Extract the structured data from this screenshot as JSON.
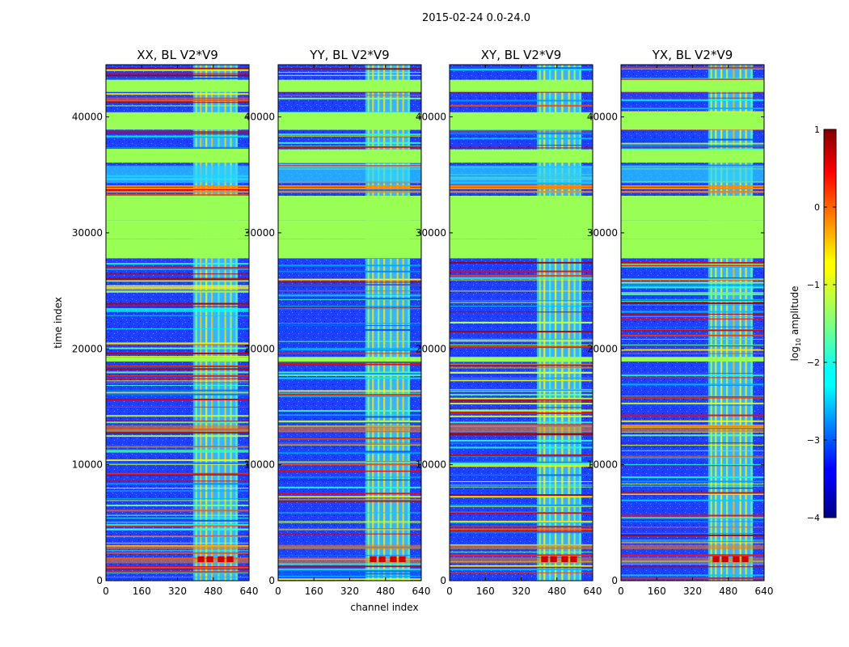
{
  "figure": {
    "suptitle": "2015-02-24 0.0-24.0"
  },
  "chart_data": [
    {
      "type": "heatmap",
      "title": "XX, BL V2*V9",
      "xlabel": "",
      "ylabel": "time index",
      "xlim": [
        0,
        640
      ],
      "ylim": [
        0,
        44500
      ],
      "xticks": [
        0,
        160,
        320,
        480,
        640
      ],
      "yticks": [
        0,
        10000,
        20000,
        30000,
        40000
      ],
      "grid": false
    },
    {
      "type": "heatmap",
      "title": "YY, BL V2*V9",
      "xlabel": "channel index",
      "ylabel": "",
      "xlim": [
        0,
        640
      ],
      "ylim": [
        0,
        44500
      ],
      "xticks": [
        0,
        160,
        320,
        480,
        640
      ],
      "yticks": [
        0,
        10000,
        20000,
        30000,
        40000
      ],
      "grid": false
    },
    {
      "type": "heatmap",
      "title": "XY, BL V2*V9",
      "xlabel": "",
      "ylabel": "",
      "xlim": [
        0,
        640
      ],
      "ylim": [
        0,
        44500
      ],
      "xticks": [
        0,
        160,
        320,
        480,
        640
      ],
      "yticks": [
        0,
        10000,
        20000,
        30000,
        40000
      ],
      "grid": false
    },
    {
      "type": "heatmap",
      "title": "YX, BL V2*V9",
      "xlabel": "",
      "ylabel": "",
      "xlim": [
        0,
        640
      ],
      "ylim": [
        0,
        44500
      ],
      "xticks": [
        0,
        160,
        320,
        480,
        640
      ],
      "yticks": [
        0,
        10000,
        20000,
        30000,
        40000
      ],
      "grid": false
    }
  ],
  "colorbar": {
    "label": "log10 amplitude",
    "label_prefix": "log",
    "label_sub": "10",
    "label_suffix": " amplitude",
    "vmin": -4,
    "vmax": 1,
    "ticks": [
      1,
      0,
      -1,
      -2,
      -3,
      -4
    ],
    "tick_labels": [
      "1",
      "0",
      "−1",
      "−2",
      "−3",
      "−4"
    ],
    "colormap": "jet"
  },
  "structure": {
    "flag_color": "#99ff55",
    "flagged_time_ranges": [
      [
        42150,
        43200
      ],
      [
        38900,
        40400
      ],
      [
        36050,
        37200
      ],
      [
        29450,
        31100
      ],
      [
        31100,
        33200
      ],
      [
        27800,
        29450
      ],
      [
        18900,
        19300
      ]
    ],
    "rfi_channel_range": [
      390,
      590
    ],
    "strong_bands": [
      [
        12800,
        13400
      ],
      [
        1500,
        2000
      ],
      [
        2700,
        3100
      ]
    ]
  }
}
